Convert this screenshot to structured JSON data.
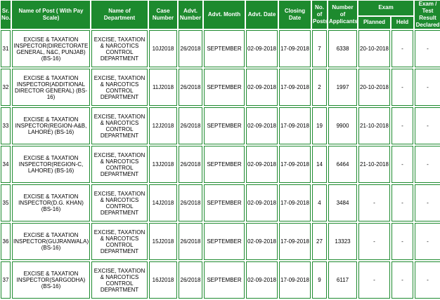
{
  "headers": {
    "sr": "Sr. No.",
    "post": "Name of Post ( With Pay Scale)",
    "department": "Name of Department",
    "case_number": "Case Number",
    "advt_number": "Advt. Number",
    "advt_month": "Advt. Month",
    "advt_date": "Advt. Date",
    "closing_date": "Closing Date",
    "posts": "No. of Posts",
    "applicants": "Number of Applicants",
    "exam": "Exam",
    "planned": "Planned",
    "held": "Held",
    "result": "Exam / Test Result Declared"
  },
  "rows": [
    {
      "sr": "31",
      "post": "EXCISE & TAXATION INSPECTOR(DIRECTORATE GENERAL, N&C, PUNJAB) (BS-16)",
      "department": "EXCISE, TAXATION & NARCOTICS CONTROL DEPARTMENT",
      "case_number": "10J2018",
      "advt_number": "26/2018",
      "advt_month": "SEPTEMBER",
      "advt_date": "02-09-2018",
      "closing_date": "17-09-2018",
      "posts": "7",
      "applicants": "6338",
      "planned": "20-10-2018",
      "held": "-",
      "result": "-"
    },
    {
      "sr": "32",
      "post": "EXCISE & TAXATION INSPECTOR(ADDITIONAL DIRECTOR GENERAL) (BS-16)",
      "department": "EXCISE, TAXATION & NARCOTICS CONTROL DEPARTMENT",
      "case_number": "11J2018",
      "advt_number": "26/2018",
      "advt_month": "SEPTEMBER",
      "advt_date": "02-09-2018",
      "closing_date": "17-09-2018",
      "posts": "2",
      "applicants": "1997",
      "planned": "20-10-2018",
      "held": "-",
      "result": "-"
    },
    {
      "sr": "33",
      "post": "EXCISE & TAXATION INSPECTOR(REGION-A&B, LAHORE) (BS-16)",
      "department": "EXCISE, TAXATION & NARCOTICS CONTROL DEPARTMENT",
      "case_number": "12J2018",
      "advt_number": "26/2018",
      "advt_month": "SEPTEMBER",
      "advt_date": "02-09-2018",
      "closing_date": "17-09-2018",
      "posts": "19",
      "applicants": "9900",
      "planned": "21-10-2018",
      "held": "-",
      "result": "-"
    },
    {
      "sr": "34",
      "post": "EXCISE & TAXATION INSPECTOR(REGION-C, LAHORE) (BS-16)",
      "department": "EXCISE, TAXATION & NARCOTICS CONTROL DEPARTMENT",
      "case_number": "13J2018",
      "advt_number": "26/2018",
      "advt_month": "SEPTEMBER",
      "advt_date": "02-09-2018",
      "closing_date": "17-09-2018",
      "posts": "14",
      "applicants": "6464",
      "planned": "21-10-2018",
      "held": "-",
      "result": "-"
    },
    {
      "sr": "35",
      "post": "EXCISE & TAXATION INSPECTOR(D.G. KHAN) (BS-16)",
      "department": "EXCISE, TAXATION & NARCOTICS CONTROL DEPARTMENT",
      "case_number": "14J2018",
      "advt_number": "26/2018",
      "advt_month": "SEPTEMBER",
      "advt_date": "02-09-2018",
      "closing_date": "17-09-2018",
      "posts": "4",
      "applicants": "3484",
      "planned": "-",
      "held": "-",
      "result": "-"
    },
    {
      "sr": "36",
      "post": "EXCISE & TAXATION INSPECTOR(GUJRANWALA) (BS-16)",
      "department": "EXCISE, TAXATION & NARCOTICS CONTROL DEPARTMENT",
      "case_number": "15J2018",
      "advt_number": "26/2018",
      "advt_month": "SEPTEMBER",
      "advt_date": "02-09-2018",
      "closing_date": "17-09-2018",
      "posts": "27",
      "applicants": "13323",
      "planned": "-",
      "held": "-",
      "result": "-"
    },
    {
      "sr": "37",
      "post": "EXCISE & TAXATION INSPECTOR(SARGODHA) (BS-16)",
      "department": "EXCISE, TAXATION & NARCOTICS CONTROL DEPARTMENT",
      "case_number": "16J2018",
      "advt_number": "26/2018",
      "advt_month": "SEPTEMBER",
      "advt_date": "02-09-2018",
      "closing_date": "17-09-2018",
      "posts": "9",
      "applicants": "6117",
      "planned": "-",
      "held": "-",
      "result": "-"
    }
  ]
}
